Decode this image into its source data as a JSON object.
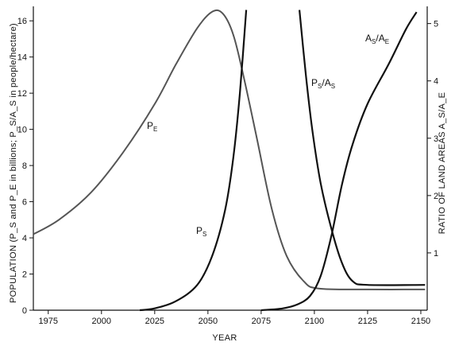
{
  "chart_data": {
    "type": "line",
    "xlabel": "YEAR",
    "ylabel_left": "POPULATION (P_S and P_E in billions; P_S/A_S in people/hectare)",
    "ylabel_right": "RATIO OF LAND AREAS A_S/A_E",
    "xlim": [
      1968,
      2153
    ],
    "ylim_left": [
      0,
      16.8
    ],
    "ylim_right": [
      0,
      5.3
    ],
    "x_ticks": [
      1975,
      2000,
      2025,
      2050,
      2075,
      2100,
      2125,
      2150
    ],
    "y_left_ticks": [
      0,
      2,
      4,
      6,
      8,
      10,
      12,
      14,
      16
    ],
    "y_right_ticks": [
      1,
      2,
      3,
      4,
      5
    ],
    "series": [
      {
        "name": "P_E",
        "axis": "left",
        "points": [
          [
            1968,
            4.2
          ],
          [
            1980,
            5.0
          ],
          [
            1995,
            6.5
          ],
          [
            2010,
            8.7
          ],
          [
            2025,
            11.4
          ],
          [
            2035,
            13.6
          ],
          [
            2045,
            15.6
          ],
          [
            2052,
            16.5
          ],
          [
            2057,
            16.4
          ],
          [
            2062,
            15.2
          ],
          [
            2067,
            12.8
          ],
          [
            2073,
            9.5
          ],
          [
            2080,
            5.6
          ],
          [
            2087,
            3.0
          ],
          [
            2095,
            1.6
          ],
          [
            2102,
            1.2
          ],
          [
            2125,
            1.15
          ],
          [
            2152,
            1.15
          ]
        ]
      },
      {
        "name": "P_S",
        "axis": "left",
        "points": [
          [
            2018,
            0.0
          ],
          [
            2025,
            0.1
          ],
          [
            2035,
            0.5
          ],
          [
            2045,
            1.4
          ],
          [
            2052,
            3.0
          ],
          [
            2058,
            5.5
          ],
          [
            2062,
            8.5
          ],
          [
            2065,
            12.0
          ],
          [
            2068,
            16.6
          ]
        ]
      },
      {
        "name": "P_S/A_S",
        "axis": "left",
        "points": [
          [
            2093,
            16.6
          ],
          [
            2096,
            13.0
          ],
          [
            2099,
            10.0
          ],
          [
            2103,
            7.0
          ],
          [
            2108,
            4.5
          ],
          [
            2113,
            2.6
          ],
          [
            2118,
            1.6
          ],
          [
            2125,
            1.4
          ],
          [
            2152,
            1.4
          ]
        ]
      },
      {
        "name": "A_S/A_E",
        "axis": "right",
        "points": [
          [
            2075,
            0.0
          ],
          [
            2085,
            0.03
          ],
          [
            2092,
            0.1
          ],
          [
            2098,
            0.25
          ],
          [
            2103,
            0.6
          ],
          [
            2108,
            1.3
          ],
          [
            2113,
            2.2
          ],
          [
            2118,
            2.9
          ],
          [
            2125,
            3.6
          ],
          [
            2135,
            4.3
          ],
          [
            2143,
            4.9
          ],
          [
            2148,
            5.2
          ]
        ]
      }
    ],
    "annotations": [
      {
        "id": "pe",
        "main": "P",
        "sub": "E"
      },
      {
        "id": "ps",
        "main": "P",
        "sub": "S"
      },
      {
        "id": "psas",
        "main": "P",
        "sub": "S",
        "slash": "/A",
        "sub2": "S"
      },
      {
        "id": "asae",
        "main": "A",
        "sub": "S",
        "slash": "/A",
        "sub2": "E"
      }
    ],
    "grid": false,
    "legend": "none"
  }
}
